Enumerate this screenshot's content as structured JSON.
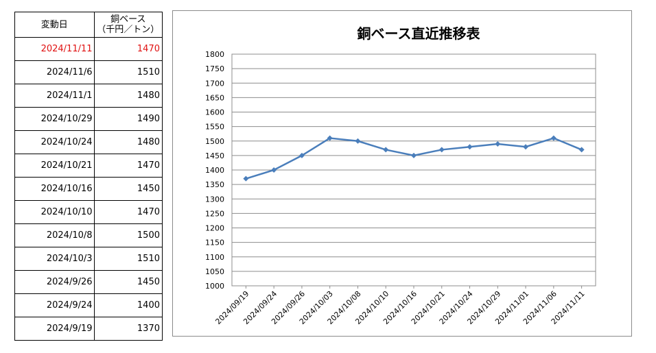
{
  "table": {
    "header_date": "変動日",
    "header_value_line1": "銅ベース",
    "header_value_line2": "（千円／トン）",
    "rows": [
      {
        "date": "2024/11/11",
        "value": "1470"
      },
      {
        "date": "2024/11/6",
        "value": "1510"
      },
      {
        "date": "2024/11/1",
        "value": "1480"
      },
      {
        "date": "2024/10/29",
        "value": "1490"
      },
      {
        "date": "2024/10/24",
        "value": "1480"
      },
      {
        "date": "2024/10/21",
        "value": "1470"
      },
      {
        "date": "2024/10/16",
        "value": "1450"
      },
      {
        "date": "2024/10/10",
        "value": "1470"
      },
      {
        "date": "2024/10/8",
        "value": "1500"
      },
      {
        "date": "2024/10/3",
        "value": "1510"
      },
      {
        "date": "2024/9/26",
        "value": "1450"
      },
      {
        "date": "2024/9/24",
        "value": "1400"
      },
      {
        "date": "2024/9/19",
        "value": "1370"
      }
    ],
    "highlight_color": "#e01010"
  },
  "chart_data": {
    "type": "line",
    "title": "銅ベース直近推移表",
    "xlabel": "",
    "ylabel": "",
    "categories": [
      "2024/09/19",
      "2024/09/24",
      "2024/09/26",
      "2024/10/03",
      "2024/10/08",
      "2024/10/10",
      "2024/10/16",
      "2024/10/21",
      "2024/10/24",
      "2024/10/29",
      "2024/11/01",
      "2024/11/06",
      "2024/11/11"
    ],
    "series": [
      {
        "values": [
          1370,
          1400,
          1450,
          1510,
          1500,
          1470,
          1450,
          1470,
          1480,
          1490,
          1480,
          1510,
          1470
        ],
        "color": "#4a7ebb"
      }
    ],
    "ylim": [
      1000,
      1800
    ],
    "ytick_step": 50,
    "grid": "horizontal",
    "legend": "none"
  }
}
